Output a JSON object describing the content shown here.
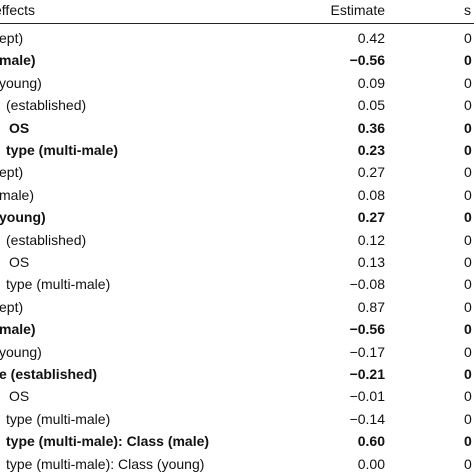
{
  "table": {
    "header": [
      "effects",
      "Estimate",
      "s"
    ],
    "rows": [
      {
        "cells": [
          "ept)",
          "0.42",
          "0"
        ],
        "bold": false
      },
      {
        "cells": [
          "male)",
          "−0.56",
          "0"
        ],
        "bold": true
      },
      {
        "cells": [
          "young)",
          "0.09",
          "0"
        ],
        "bold": false
      },
      {
        "cells": [
          "(established)",
          "0.05",
          "0"
        ],
        "bold": false
      },
      {
        "cells": [
          "OS",
          "0.36",
          "0"
        ],
        "bold": true
      },
      {
        "cells": [
          "type (multi-male)",
          "0.23",
          "0"
        ],
        "bold": true
      },
      {
        "cells": [
          "ept)",
          "0.27",
          "0"
        ],
        "bold": false
      },
      {
        "cells": [
          "male)",
          "0.08",
          "0"
        ],
        "bold": false
      },
      {
        "cells": [
          "young)",
          "0.27",
          "0"
        ],
        "bold": true
      },
      {
        "cells": [
          "(established)",
          "0.12",
          "0"
        ],
        "bold": false
      },
      {
        "cells": [
          "OS",
          "0.13",
          "0"
        ],
        "bold": false
      },
      {
        "cells": [
          "type (multi-male)",
          "−0.08",
          "0"
        ],
        "bold": false
      },
      {
        "cells": [
          "ept)",
          "0.87",
          "0"
        ],
        "bold": false
      },
      {
        "cells": [
          "male)",
          "−0.56",
          "0"
        ],
        "bold": true
      },
      {
        "cells": [
          "young)",
          "−0.17",
          "0"
        ],
        "bold": false
      },
      {
        "cells": [
          "e (established)",
          "−0.21",
          "0"
        ],
        "bold": true
      },
      {
        "cells": [
          "OS",
          "−0.01",
          "0"
        ],
        "bold": false
      },
      {
        "cells": [
          "type (multi-male)",
          "−0.14",
          "0"
        ],
        "bold": false
      },
      {
        "cells": [
          "type (multi-male): Class (male)",
          "0.60",
          "0"
        ],
        "bold": true
      },
      {
        "cells": [
          "type (multi-male): Class (young)",
          "0.00",
          "0"
        ],
        "bold": false
      }
    ]
  }
}
